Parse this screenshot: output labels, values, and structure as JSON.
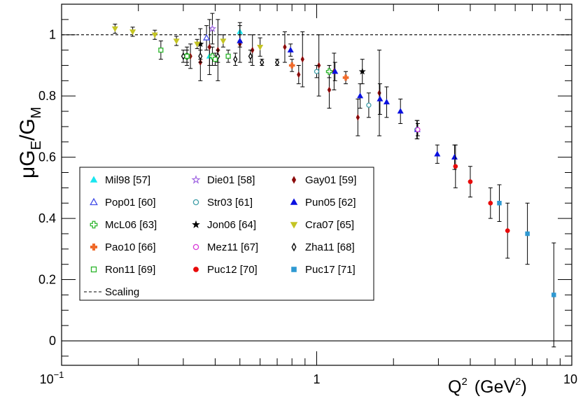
{
  "chart_data": {
    "type": "scatter",
    "xscale": "log",
    "xlim": [
      0.1,
      10
    ],
    "ylim": [
      -0.08,
      1.1
    ],
    "xlabel": {
      "base": "Q",
      "sup": "2",
      "unit_open": "(GeV",
      "unit_sup": "2",
      "unit_close": ")"
    },
    "ylabel": {
      "mu": "μ",
      "g1": "G",
      "sub1": "E",
      "slash": "/",
      "g2": "G",
      "sub2": "M"
    },
    "x_tick_labels": [
      {
        "value": 0.1,
        "base": "10",
        "exp": "−1"
      },
      {
        "value": 1,
        "text": "1"
      },
      {
        "value": 10,
        "text": "10"
      }
    ],
    "y_ticks": [
      0,
      0.2,
      0.4,
      0.6,
      0.8,
      1
    ],
    "y_tick_labels": [
      "0",
      "0.2",
      "0.4",
      "0.6",
      "0.8",
      "1"
    ],
    "grid": false,
    "legend_position": "lower-left",
    "reference_lines": [
      {
        "name": "Scaling",
        "y": 1,
        "style": "dashed"
      },
      {
        "y": 0,
        "style": "solid"
      }
    ],
    "series": [
      {
        "name": "Mil98 [57]",
        "marker": "triangle-up",
        "filled": true,
        "color": "#19e6ef",
        "points": [
          {
            "x": 0.38,
            "y": 0.93,
            "err": 0.03
          },
          {
            "x": 0.5,
            "y": 1.01,
            "err": 0.03
          }
        ]
      },
      {
        "name": "Die01 [58]",
        "marker": "star",
        "filled": false,
        "color": "#9c5fe0",
        "points": [
          {
            "x": 0.39,
            "y": 1.02,
            "err": 0.05
          }
        ]
      },
      {
        "name": "Gay01 [59]",
        "marker": "diamond",
        "filled": true,
        "color": "#8b0a0a",
        "points": [
          {
            "x": 0.32,
            "y": 0.93,
            "err": 0.04
          },
          {
            "x": 0.35,
            "y": 0.91,
            "err": 0.06
          },
          {
            "x": 0.38,
            "y": 0.96,
            "err": 0.09
          },
          {
            "x": 0.41,
            "y": 0.95,
            "err": 0.1
          },
          {
            "x": 0.5,
            "y": 0.97,
            "err": 0.06
          },
          {
            "x": 0.56,
            "y": 0.95,
            "err": 0.05
          },
          {
            "x": 0.75,
            "y": 0.96,
            "err": 0.05
          },
          {
            "x": 0.85,
            "y": 0.87,
            "err": 0.03
          },
          {
            "x": 0.88,
            "y": 0.92,
            "err": 0.09
          },
          {
            "x": 1.02,
            "y": 0.9,
            "err": 0.1
          },
          {
            "x": 1.12,
            "y": 0.82,
            "err": 0.06
          },
          {
            "x": 1.17,
            "y": 0.88,
            "err": 0.06
          },
          {
            "x": 1.45,
            "y": 0.73,
            "err": 0.06
          },
          {
            "x": 1.76,
            "y": 0.81,
            "err": 0.14
          }
        ]
      },
      {
        "name": "Pop01 [60]",
        "marker": "triangle-up",
        "filled": false,
        "color": "#4550e8",
        "points": [
          {
            "x": 0.37,
            "y": 0.99,
            "err": 0.04
          }
        ]
      },
      {
        "name": "Str03 [61]",
        "marker": "circle",
        "filled": false,
        "color": "#3f9ea8",
        "points": [
          {
            "x": 1.0,
            "y": 0.88,
            "err": 0.02
          },
          {
            "x": 1.6,
            "y": 0.77,
            "err": 0.04
          },
          {
            "x": 2.47,
            "y": 0.69,
            "err": 0.03
          }
        ]
      },
      {
        "name": "Pun05 [62]",
        "marker": "triangle-up",
        "filled": true,
        "color": "#0a10e0",
        "points": [
          {
            "x": 0.5,
            "y": 0.98,
            "err": 0.02
          },
          {
            "x": 0.79,
            "y": 0.95,
            "err": 0.02
          },
          {
            "x": 1.18,
            "y": 0.88,
            "err": 0.03
          },
          {
            "x": 1.48,
            "y": 0.8,
            "err": 0.04
          },
          {
            "x": 1.77,
            "y": 0.79,
            "err": 0.05
          },
          {
            "x": 1.88,
            "y": 0.78,
            "err": 0.05
          },
          {
            "x": 2.13,
            "y": 0.75,
            "err": 0.04
          },
          {
            "x": 2.48,
            "y": 0.69,
            "err": 0.03
          },
          {
            "x": 2.97,
            "y": 0.61,
            "err": 0.03
          },
          {
            "x": 3.47,
            "y": 0.6,
            "err": 0.04
          }
        ]
      },
      {
        "name": "McL06 [63]",
        "marker": "cross",
        "filled": false,
        "color": "#2bb52b",
        "points": [
          {
            "x": 0.31,
            "y": 0.93,
            "err": 0.03
          },
          {
            "x": 0.39,
            "y": 0.93,
            "err": 0.03
          },
          {
            "x": 1.12,
            "y": 0.88,
            "err": 0.02
          }
        ]
      },
      {
        "name": "Jon06 [64]",
        "marker": "star",
        "filled": true,
        "color": "#000000",
        "points": [
          {
            "x": 0.35,
            "y": 0.97,
            "err": 0.05
          },
          {
            "x": 1.51,
            "y": 0.88,
            "err": 0.04
          }
        ]
      },
      {
        "name": "Cra07 [65]",
        "marker": "triangle-down",
        "filled": true,
        "color": "#c4c424",
        "points": [
          {
            "x": 0.162,
            "y": 1.02,
            "err": 0.015
          },
          {
            "x": 0.19,
            "y": 1.01,
            "err": 0.015
          },
          {
            "x": 0.232,
            "y": 1.0,
            "err": 0.015
          },
          {
            "x": 0.282,
            "y": 0.98,
            "err": 0.015
          },
          {
            "x": 0.34,
            "y": 0.97,
            "err": 0.015
          },
          {
            "x": 0.43,
            "y": 0.98,
            "err": 0.02
          },
          {
            "x": 0.6,
            "y": 0.96,
            "err": 0.03
          }
        ]
      },
      {
        "name": "Pao10 [66]",
        "marker": "cross",
        "filled": true,
        "color": "#f06a2a",
        "points": [
          {
            "x": 0.8,
            "y": 0.9,
            "err": 0.02
          },
          {
            "x": 1.3,
            "y": 0.86,
            "err": 0.02
          }
        ]
      },
      {
        "name": "Mez11 [67]",
        "marker": "circle",
        "filled": false,
        "color": "#d838d8",
        "points": [
          {
            "x": 2.49,
            "y": 0.69,
            "err": 0.02
          }
        ]
      },
      {
        "name": "Zha11 [68]",
        "marker": "diamond",
        "filled": false,
        "color": "#000000",
        "points": [
          {
            "x": 0.3,
            "y": 0.93,
            "err": 0.02
          },
          {
            "x": 0.35,
            "y": 0.93,
            "err": 0.02
          },
          {
            "x": 0.41,
            "y": 0.93,
            "err": 0.02
          },
          {
            "x": 0.48,
            "y": 0.92,
            "err": 0.02
          },
          {
            "x": 0.55,
            "y": 0.93,
            "err": 0.02
          },
          {
            "x": 0.61,
            "y": 0.91,
            "err": 0.01
          },
          {
            "x": 0.7,
            "y": 0.91,
            "err": 0.01
          }
        ]
      },
      {
        "name": "Ron11 [69]",
        "marker": "square",
        "filled": false,
        "color": "#2bb52b",
        "points": [
          {
            "x": 0.245,
            "y": 0.95,
            "err": 0.03
          },
          {
            "x": 0.31,
            "y": 0.93,
            "err": 0.02
          },
          {
            "x": 0.4,
            "y": 0.92,
            "err": 0.02
          },
          {
            "x": 0.45,
            "y": 0.93,
            "err": 0.02
          }
        ]
      },
      {
        "name": "Puc12 [70]",
        "marker": "circle",
        "filled": true,
        "color": "#e80a0a",
        "points": [
          {
            "x": 3.5,
            "y": 0.57,
            "err": 0.07
          },
          {
            "x": 4.0,
            "y": 0.52,
            "err": 0.05
          },
          {
            "x": 4.8,
            "y": 0.45,
            "err": 0.05
          },
          {
            "x": 5.6,
            "y": 0.36,
            "err": 0.09
          }
        ]
      },
      {
        "name": "Puc17 [71]",
        "marker": "square",
        "filled": true,
        "color": "#2f99d2",
        "points": [
          {
            "x": 5.2,
            "y": 0.45,
            "err": 0.06
          },
          {
            "x": 6.7,
            "y": 0.35,
            "err": 0.1
          },
          {
            "x": 8.5,
            "y": 0.15,
            "err": 0.17
          }
        ]
      }
    ]
  }
}
